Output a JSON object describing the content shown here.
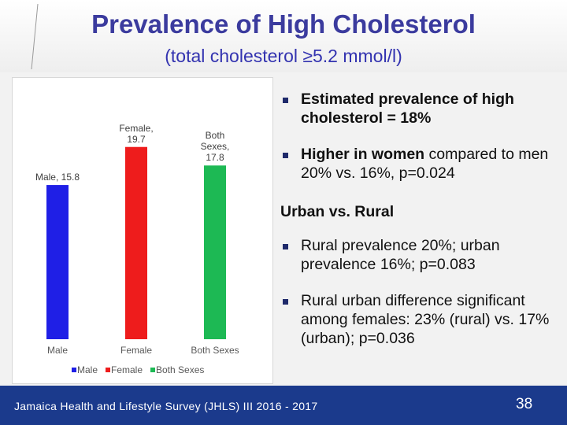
{
  "title": "Prevalence of High Cholesterol",
  "subtitle": "(total cholesterol ≥5.2 mmol/l)",
  "chart_data": {
    "type": "bar",
    "categories": [
      "Male",
      "Female",
      "Both Sexes"
    ],
    "series": [
      {
        "name": "Male",
        "color": "#1f1fe6",
        "values": [
          15.8,
          null,
          null
        ],
        "value_labels": [
          "Male, 15.8",
          null,
          null
        ]
      },
      {
        "name": "Female",
        "color": "#ee1c1c",
        "values": [
          null,
          19.7,
          null
        ],
        "value_labels": [
          null,
          "Female, 19.7",
          null
        ]
      },
      {
        "name": "Both Sexes",
        "color": "#1db954",
        "values": [
          null,
          null,
          17.8
        ],
        "value_labels": [
          null,
          null,
          "Both Sexes, 17.8"
        ]
      }
    ],
    "ylim": [
      0,
      25
    ]
  },
  "bullets_top": [
    {
      "bold": "Estimated prevalence of high cholesterol = 18%"
    },
    {
      "bold": "Higher in women",
      "text": " compared to men 20% vs. 16%, p=0.024"
    }
  ],
  "section_heading": "Urban vs. Rural",
  "bullets_bottom": [
    {
      "text": "Rural prevalence 20%; urban prevalence 16%; p=0.083"
    },
    {
      "text": "Rural urban difference significant among females:  23% (rural) vs. 17% (urban); p=0.036"
    }
  ],
  "footer": {
    "source": "Jamaica Health and Lifestyle Survey (JHLS) III 2016 - 2017",
    "page": "38"
  }
}
